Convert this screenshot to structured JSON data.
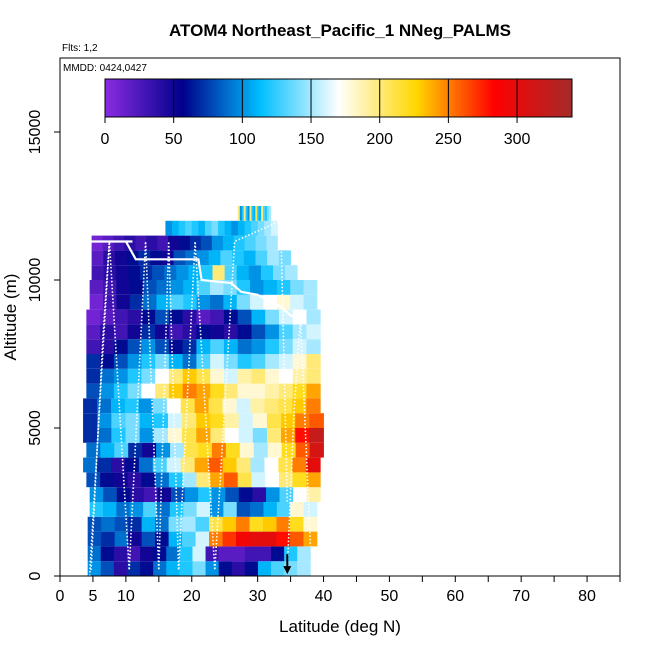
{
  "chart_data": {
    "type": "heatmap",
    "title": "ATOM4 Northeast_Pacific_1 NNeg_PALMS",
    "flights_label": "Flts: 1,2",
    "mmdd_label": "MMDD: 0424,0427",
    "xlabel": "Latitude (deg N)",
    "ylabel": "Altitude (m)",
    "xlim": [
      0,
      85
    ],
    "ylim": [
      0,
      17500
    ],
    "x_ticks": [
      "0",
      "5",
      "10",
      "20",
      "30",
      "40",
      "50",
      "60",
      "70",
      "80"
    ],
    "x_tick_values": [
      0,
      5,
      10,
      20,
      30,
      40,
      50,
      60,
      70,
      80
    ],
    "x_minor_ticks": [
      15,
      25,
      35,
      45,
      55,
      65,
      75,
      85
    ],
    "y_ticks": [
      "0",
      "5000",
      "10000",
      "15000"
    ],
    "y_tick_values": [
      0,
      5000,
      10000,
      15000
    ],
    "colorbar": {
      "ticks": [
        "0",
        "50",
        "100",
        "150",
        "200",
        "250",
        "300"
      ],
      "tick_values": [
        0,
        50,
        100,
        150,
        200,
        250,
        300
      ],
      "range": [
        0,
        340
      ],
      "colors": [
        "#8a2be2",
        "#00008b",
        "#00bfff",
        "#ffffff",
        "#ffd700",
        "#ff0000",
        "#a52a2a"
      ]
    },
    "altitude_bins": [
      {
        "lo": 0,
        "hi": 500
      },
      {
        "lo": 500,
        "hi": 1000
      },
      {
        "lo": 1000,
        "hi": 1500
      },
      {
        "lo": 1500,
        "hi": 2000
      },
      {
        "lo": 2000,
        "hi": 2500
      },
      {
        "lo": 2500,
        "hi": 3000
      },
      {
        "lo": 3000,
        "hi": 3500
      },
      {
        "lo": 3500,
        "hi": 4000
      },
      {
        "lo": 4000,
        "hi": 4500
      },
      {
        "lo": 4500,
        "hi": 5000
      },
      {
        "lo": 5000,
        "hi": 5500
      },
      {
        "lo": 5500,
        "hi": 6000
      },
      {
        "lo": 6000,
        "hi": 6500
      },
      {
        "lo": 6500,
        "hi": 7000
      },
      {
        "lo": 7000,
        "hi": 7500
      },
      {
        "lo": 7500,
        "hi": 8000
      },
      {
        "lo": 8000,
        "hi": 8500
      },
      {
        "lo": 8500,
        "hi": 9000
      },
      {
        "lo": 9000,
        "hi": 9500
      },
      {
        "lo": 9500,
        "hi": 10000
      },
      {
        "lo": 10000,
        "hi": 10500
      },
      {
        "lo": 10500,
        "hi": 11000
      },
      {
        "lo": 11000,
        "hi": 11500
      },
      {
        "lo": 11500,
        "hi": 12000
      },
      {
        "lo": 12000,
        "hi": 12500
      }
    ],
    "lat_ranges": [
      [
        4.2,
        38
      ],
      [
        4.2,
        38
      ],
      [
        4.2,
        39
      ],
      [
        4.2,
        39
      ],
      [
        4.5,
        39
      ],
      [
        4.5,
        39.5
      ],
      [
        4.0,
        39.5
      ],
      [
        3.5,
        39.5
      ],
      [
        4.0,
        40
      ],
      [
        3.5,
        40
      ],
      [
        3.5,
        40
      ],
      [
        3.5,
        39.5
      ],
      [
        4.0,
        39.5
      ],
      [
        4.0,
        39.5
      ],
      [
        4.0,
        39.5
      ],
      [
        4.0,
        39.5
      ],
      [
        4.0,
        39.5
      ],
      [
        4.0,
        39.5
      ],
      [
        4.5,
        39
      ],
      [
        4.5,
        39
      ],
      [
        4.8,
        36
      ],
      [
        4.8,
        35
      ],
      [
        4.8,
        33
      ],
      [
        16,
        33
      ],
      [
        27,
        32
      ]
    ],
    "value_rows": [
      [
        100,
        80,
        40,
        70,
        60,
        90,
        110,
        120,
        140,
        100,
        60,
        40,
        60,
        110,
        130,
        140,
        150
      ],
      [
        90,
        60,
        40,
        30,
        50,
        60,
        90,
        120,
        160,
        30,
        20,
        20,
        30,
        30,
        60,
        120,
        150
      ],
      [
        80,
        70,
        90,
        50,
        80,
        60,
        110,
        130,
        160,
        250,
        270,
        290,
        300,
        300,
        280,
        260,
        240
      ],
      [
        80,
        90,
        80,
        70,
        110,
        90,
        140,
        150,
        130,
        210,
        230,
        250,
        220,
        230,
        250,
        220,
        180
      ],
      [
        120,
        110,
        90,
        100,
        130,
        90,
        120,
        140,
        160,
        100,
        140,
        80,
        90,
        110,
        130,
        180,
        160
      ],
      [
        100,
        80,
        60,
        40,
        30,
        50,
        80,
        100,
        120,
        100,
        80,
        60,
        40,
        100,
        130,
        170,
        190
      ],
      [
        80,
        60,
        50,
        40,
        60,
        90,
        120,
        150,
        200,
        240,
        260,
        210,
        160,
        170,
        200,
        220,
        240
      ],
      [
        90,
        70,
        40,
        60,
        90,
        130,
        160,
        200,
        240,
        260,
        230,
        200,
        150,
        170,
        210,
        250,
        300
      ],
      [
        90,
        110,
        130,
        70,
        50,
        100,
        150,
        210,
        220,
        250,
        220,
        180,
        150,
        180,
        220,
        260,
        310
      ],
      [
        70,
        90,
        120,
        140,
        100,
        150,
        180,
        210,
        240,
        200,
        170,
        160,
        140,
        200,
        240,
        280,
        320
      ],
      [
        70,
        100,
        130,
        140,
        110,
        120,
        160,
        200,
        230,
        220,
        190,
        160,
        180,
        210,
        230,
        250,
        260
      ],
      [
        70,
        90,
        110,
        120,
        100,
        140,
        170,
        210,
        240,
        210,
        180,
        160,
        190,
        200,
        210,
        230,
        250
      ],
      [
        80,
        100,
        120,
        140,
        170,
        200,
        230,
        250,
        240,
        220,
        200,
        180,
        180,
        190,
        200,
        220,
        240
      ],
      [
        70,
        90,
        100,
        120,
        140,
        170,
        200,
        230,
        210,
        180,
        160,
        190,
        200,
        180,
        170,
        190,
        200
      ],
      [
        70,
        60,
        80,
        100,
        120,
        140,
        110,
        90,
        130,
        160,
        140,
        120,
        130,
        150,
        160,
        180,
        200
      ],
      [
        30,
        40,
        60,
        80,
        100,
        80,
        60,
        70,
        110,
        130,
        110,
        90,
        100,
        120,
        140,
        160,
        150
      ],
      [
        20,
        40,
        30,
        50,
        70,
        50,
        30,
        40,
        60,
        50,
        40,
        60,
        80,
        100,
        130,
        150,
        160
      ],
      [
        10,
        20,
        30,
        40,
        60,
        80,
        60,
        40,
        20,
        30,
        60,
        80,
        110,
        140,
        160,
        170,
        150
      ],
      [
        10,
        30,
        50,
        70,
        90,
        110,
        130,
        120,
        100,
        90,
        110,
        140,
        160,
        170,
        180,
        160,
        150
      ],
      [
        20,
        30,
        50,
        60,
        80,
        90,
        100,
        110,
        130,
        150,
        140,
        120,
        100,
        110,
        120,
        140,
        150
      ],
      [
        30,
        40,
        50,
        60,
        70,
        80,
        90,
        100,
        110,
        120,
        200,
        130,
        110,
        100,
        120,
        140,
        150
      ],
      [
        20,
        40,
        50,
        60,
        70,
        60,
        50,
        80,
        90,
        100,
        110,
        130,
        120,
        110,
        130,
        150,
        140
      ],
      [
        10,
        20,
        30,
        40,
        30,
        40,
        30,
        50,
        60,
        70,
        80,
        100,
        110,
        120,
        130,
        140,
        150
      ],
      [
        100,
        110,
        120,
        130,
        120,
        110,
        130,
        140,
        120,
        110,
        100,
        110,
        120,
        130,
        140,
        150,
        160
      ],
      [
        200,
        100,
        120,
        200,
        120,
        100,
        200,
        120,
        110,
        210,
        120,
        110,
        200,
        130,
        120,
        140,
        150
      ]
    ],
    "flight_track": [
      [
        4.5,
        11300
      ],
      [
        11.0,
        11300
      ],
      [
        10.0,
        11300
      ],
      [
        11.5,
        10700
      ],
      [
        21.0,
        10700
      ],
      [
        21.5,
        10000
      ],
      [
        26.0,
        9900
      ],
      [
        27.5,
        9600
      ],
      [
        30.0,
        9500
      ],
      [
        33.5,
        9100
      ],
      [
        35.0,
        8800
      ],
      [
        36.5,
        8700
      ],
      [
        37.0,
        8600
      ]
    ],
    "dotted_profiles": [
      [
        [
          4.5,
          0
        ],
        [
          7.5,
          11300
        ],
        [
          10.5,
          200
        ],
        [
          13.0,
          11300
        ],
        [
          15.0,
          200
        ],
        [
          16.5,
          11300
        ],
        [
          18.0,
          200
        ],
        [
          20.5,
          11300
        ],
        [
          23.5,
          200
        ],
        [
          26.5,
          11300
        ],
        [
          33.5,
          12000
        ],
        [
          34.5,
          2500
        ]
      ],
      [
        [
          4.7,
          200
        ],
        [
          6.5,
          8000
        ],
        [
          7.5,
          11300
        ]
      ],
      [
        [
          34.5,
          200
        ],
        [
          35.5,
          5500
        ],
        [
          36.5,
          8700
        ],
        [
          38.0,
          1000
        ]
      ]
    ],
    "marker": {
      "lat": 34.5,
      "alt": 200
    }
  }
}
